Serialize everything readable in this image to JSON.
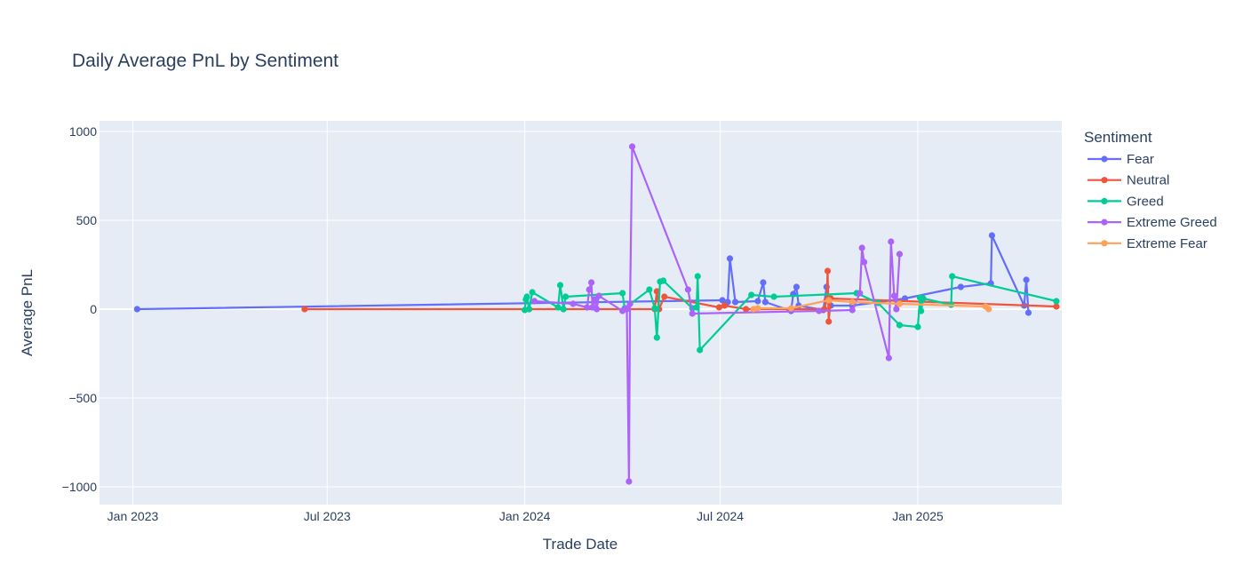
{
  "chart_data": {
    "type": "line",
    "title": "Daily Average PnL by Sentiment",
    "xlabel": "Trade Date",
    "ylabel": "Average PnL",
    "xlim": [
      "2022-12-01",
      "2025-05-15"
    ],
    "ylim": [
      -1100,
      1060
    ],
    "x_ticks": [
      {
        "date": "2023-01-01",
        "label": "Jan 2023"
      },
      {
        "date": "2023-07-01",
        "label": "Jul 2023"
      },
      {
        "date": "2024-01-01",
        "label": "Jan 2024"
      },
      {
        "date": "2024-07-01",
        "label": "Jul 2024"
      },
      {
        "date": "2025-01-01",
        "label": "Jan 2025"
      }
    ],
    "y_ticks": [
      {
        "value": 1000,
        "label": "1000"
      },
      {
        "value": 500,
        "label": "500"
      },
      {
        "value": 0,
        "label": "0"
      },
      {
        "value": -500,
        "label": "−500"
      },
      {
        "value": -1000,
        "label": "−1000"
      }
    ],
    "grid": true,
    "legend": {
      "title": "Sentiment",
      "placement": "right"
    },
    "series": [
      {
        "name": "Fear",
        "color": "#636efa",
        "points": [
          [
            "2023-01-05",
            0
          ],
          [
            "2024-07-03",
            50
          ],
          [
            "2024-07-08",
            40
          ],
          [
            "2024-07-10",
            285
          ],
          [
            "2024-07-15",
            40
          ],
          [
            "2024-08-05",
            45
          ],
          [
            "2024-08-10",
            150
          ],
          [
            "2024-08-12",
            40
          ],
          [
            "2024-09-05",
            -10
          ],
          [
            "2024-09-07",
            85
          ],
          [
            "2024-09-10",
            125
          ],
          [
            "2024-09-12",
            20
          ],
          [
            "2024-10-05",
            -5
          ],
          [
            "2024-10-08",
            125
          ],
          [
            "2024-10-12",
            20
          ],
          [
            "2024-11-01",
            20
          ],
          [
            "2024-12-20",
            60
          ],
          [
            "2025-02-10",
            125
          ],
          [
            "2025-03-10",
            145
          ],
          [
            "2025-03-11",
            415
          ],
          [
            "2025-04-10",
            20
          ],
          [
            "2025-04-12",
            165
          ],
          [
            "2025-04-14",
            -20
          ]
        ]
      },
      {
        "name": "Neutral",
        "color": "#ef553b",
        "points": [
          [
            "2023-06-10",
            0
          ],
          [
            "2024-01-05",
            0
          ],
          [
            "2024-04-05",
            0
          ],
          [
            "2024-05-01",
            0
          ],
          [
            "2024-05-03",
            100
          ],
          [
            "2024-05-05",
            0
          ],
          [
            "2024-05-10",
            70
          ],
          [
            "2024-06-30",
            10
          ],
          [
            "2024-07-05",
            20
          ],
          [
            "2024-07-25",
            0
          ],
          [
            "2024-10-06",
            0
          ],
          [
            "2024-10-08",
            50
          ],
          [
            "2024-10-09",
            215
          ],
          [
            "2024-10-10",
            -70
          ],
          [
            "2024-10-12",
            60
          ],
          [
            "2025-05-10",
            15
          ]
        ]
      },
      {
        "name": "Greed",
        "color": "#00cc96",
        "points": [
          [
            "2024-01-01",
            -5
          ],
          [
            "2024-01-02",
            55
          ],
          [
            "2024-01-03",
            70
          ],
          [
            "2024-01-05",
            0
          ],
          [
            "2024-01-08",
            95
          ],
          [
            "2024-02-01",
            10
          ],
          [
            "2024-02-03",
            135
          ],
          [
            "2024-02-06",
            0
          ],
          [
            "2024-02-08",
            70
          ],
          [
            "2024-04-01",
            90
          ],
          [
            "2024-04-03",
            5
          ],
          [
            "2024-04-26",
            110
          ],
          [
            "2024-05-01",
            5
          ],
          [
            "2024-05-03",
            -160
          ],
          [
            "2024-05-06",
            155
          ],
          [
            "2024-05-09",
            160
          ],
          [
            "2024-06-05",
            5
          ],
          [
            "2024-06-09",
            10
          ],
          [
            "2024-06-10",
            185
          ],
          [
            "2024-06-12",
            -230
          ],
          [
            "2024-07-30",
            80
          ],
          [
            "2024-08-20",
            70
          ],
          [
            "2024-11-05",
            90
          ],
          [
            "2024-11-25",
            35
          ],
          [
            "2024-12-15",
            -90
          ],
          [
            "2025-01-01",
            -100
          ],
          [
            "2025-01-03",
            65
          ],
          [
            "2025-01-04",
            -10
          ],
          [
            "2025-01-06",
            60
          ],
          [
            "2025-02-01",
            25
          ],
          [
            "2025-02-02",
            185
          ],
          [
            "2025-05-10",
            45
          ]
        ]
      },
      {
        "name": "Extreme Greed",
        "color": "#ab63fa",
        "points": [
          [
            "2024-01-10",
            45
          ],
          [
            "2024-02-15",
            30
          ],
          [
            "2024-02-28",
            10
          ],
          [
            "2024-03-01",
            110
          ],
          [
            "2024-03-03",
            150
          ],
          [
            "2024-03-04",
            10
          ],
          [
            "2024-03-06",
            55
          ],
          [
            "2024-03-08",
            0
          ],
          [
            "2024-03-10",
            75
          ],
          [
            "2024-04-01",
            -10
          ],
          [
            "2024-04-04",
            5
          ],
          [
            "2024-04-05",
            0
          ],
          [
            "2024-04-07",
            -970
          ],
          [
            "2024-04-08",
            30
          ],
          [
            "2024-04-10",
            915
          ],
          [
            "2024-06-01",
            110
          ],
          [
            "2024-06-05",
            -25
          ],
          [
            "2024-10-01",
            -10
          ],
          [
            "2024-11-01",
            -5
          ],
          [
            "2024-11-08",
            90
          ],
          [
            "2024-11-10",
            345
          ],
          [
            "2024-11-12",
            265
          ],
          [
            "2024-12-05",
            -275
          ],
          [
            "2024-12-07",
            380
          ],
          [
            "2024-12-10",
            75
          ],
          [
            "2024-12-12",
            0
          ],
          [
            "2024-12-15",
            310
          ]
        ]
      },
      {
        "name": "Extreme Fear",
        "color": "#ffa15a",
        "points": [
          [
            "2024-08-01",
            0
          ],
          [
            "2024-08-05",
            5
          ],
          [
            "2024-09-05",
            5
          ],
          [
            "2024-10-10",
            50
          ],
          [
            "2024-11-01",
            40
          ],
          [
            "2024-12-15",
            30
          ],
          [
            "2025-03-05",
            15
          ],
          [
            "2025-03-08",
            0
          ]
        ]
      }
    ]
  }
}
